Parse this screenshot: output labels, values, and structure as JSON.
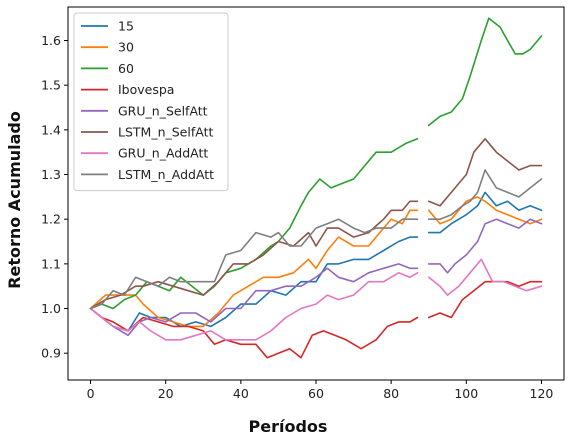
{
  "chart_data": {
    "type": "line",
    "title": "",
    "xlabel": "Períodos",
    "ylabel": "Retorno Acumulado",
    "xlim": [
      -6,
      126
    ],
    "ylim": [
      0.84,
      1.675
    ],
    "xticks": [
      0,
      20,
      40,
      60,
      80,
      100,
      120
    ],
    "yticks": [
      0.9,
      1.0,
      1.1,
      1.2,
      1.3,
      1.4,
      1.5,
      1.6
    ],
    "xtick_labels": [
      "0",
      "20",
      "40",
      "60",
      "80",
      "100",
      "120"
    ],
    "ytick_labels": [
      "0.9",
      "1.0",
      "1.1",
      "1.2",
      "1.3",
      "1.4",
      "1.5",
      "1.6"
    ],
    "grid": false,
    "legend_position": "top-left",
    "series": [
      {
        "name": "15",
        "color": "#1f77b4",
        "gaps": [
          [
            87,
            90
          ]
        ],
        "points": [
          [
            0,
            1.0
          ],
          [
            3,
            0.98
          ],
          [
            6,
            0.96
          ],
          [
            10,
            0.95
          ],
          [
            13,
            0.99
          ],
          [
            16,
            0.98
          ],
          [
            20,
            0.98
          ],
          [
            24,
            0.96
          ],
          [
            28,
            0.97
          ],
          [
            32,
            0.96
          ],
          [
            36,
            0.98
          ],
          [
            40,
            1.01
          ],
          [
            44,
            1.01
          ],
          [
            48,
            1.04
          ],
          [
            52,
            1.03
          ],
          [
            56,
            1.06
          ],
          [
            60,
            1.06
          ],
          [
            63,
            1.1
          ],
          [
            66,
            1.1
          ],
          [
            70,
            1.11
          ],
          [
            74,
            1.11
          ],
          [
            78,
            1.13
          ],
          [
            82,
            1.15
          ],
          [
            85,
            1.16
          ],
          [
            87,
            1.16
          ],
          [
            90,
            1.17
          ],
          [
            93,
            1.17
          ],
          [
            96,
            1.19
          ],
          [
            100,
            1.21
          ],
          [
            103,
            1.23
          ],
          [
            105,
            1.26
          ],
          [
            108,
            1.23
          ],
          [
            111,
            1.24
          ],
          [
            114,
            1.22
          ],
          [
            117,
            1.23
          ],
          [
            120,
            1.22
          ]
        ]
      },
      {
        "name": "30",
        "color": "#ff7f0e",
        "gaps": [
          [
            87,
            90
          ]
        ],
        "points": [
          [
            0,
            1.0
          ],
          [
            4,
            1.03
          ],
          [
            8,
            1.03
          ],
          [
            12,
            1.03
          ],
          [
            14,
            1.01
          ],
          [
            18,
            0.98
          ],
          [
            22,
            0.97
          ],
          [
            26,
            0.96
          ],
          [
            30,
            0.96
          ],
          [
            34,
            0.99
          ],
          [
            38,
            1.03
          ],
          [
            42,
            1.05
          ],
          [
            46,
            1.07
          ],
          [
            50,
            1.07
          ],
          [
            54,
            1.08
          ],
          [
            58,
            1.11
          ],
          [
            60,
            1.09
          ],
          [
            63,
            1.13
          ],
          [
            66,
            1.16
          ],
          [
            70,
            1.14
          ],
          [
            74,
            1.14
          ],
          [
            78,
            1.18
          ],
          [
            80,
            1.2
          ],
          [
            83,
            1.19
          ],
          [
            85,
            1.22
          ],
          [
            87,
            1.22
          ],
          [
            90,
            1.22
          ],
          [
            93,
            1.19
          ],
          [
            96,
            1.2
          ],
          [
            100,
            1.24
          ],
          [
            103,
            1.25
          ],
          [
            105,
            1.24
          ],
          [
            108,
            1.22
          ],
          [
            111,
            1.21
          ],
          [
            114,
            1.2
          ],
          [
            117,
            1.19
          ],
          [
            120,
            1.2
          ]
        ]
      },
      {
        "name": "60",
        "color": "#2ca02c",
        "gaps": [
          [
            87,
            90
          ]
        ],
        "points": [
          [
            0,
            1.0
          ],
          [
            3,
            1.01
          ],
          [
            6,
            1.0
          ],
          [
            9,
            1.02
          ],
          [
            12,
            1.03
          ],
          [
            15,
            1.06
          ],
          [
            18,
            1.05
          ],
          [
            21,
            1.04
          ],
          [
            24,
            1.07
          ],
          [
            27,
            1.05
          ],
          [
            30,
            1.03
          ],
          [
            33,
            1.05
          ],
          [
            36,
            1.08
          ],
          [
            40,
            1.09
          ],
          [
            44,
            1.11
          ],
          [
            48,
            1.14
          ],
          [
            50,
            1.15
          ],
          [
            53,
            1.18
          ],
          [
            56,
            1.23
          ],
          [
            58,
            1.26
          ],
          [
            61,
            1.29
          ],
          [
            64,
            1.27
          ],
          [
            67,
            1.28
          ],
          [
            70,
            1.29
          ],
          [
            73,
            1.32
          ],
          [
            76,
            1.35
          ],
          [
            80,
            1.35
          ],
          [
            84,
            1.37
          ],
          [
            87,
            1.38
          ],
          [
            90,
            1.41
          ],
          [
            93,
            1.43
          ],
          [
            96,
            1.44
          ],
          [
            99,
            1.47
          ],
          [
            101,
            1.52
          ],
          [
            104,
            1.6
          ],
          [
            106,
            1.65
          ],
          [
            109,
            1.63
          ],
          [
            111,
            1.6
          ],
          [
            113,
            1.57
          ],
          [
            115,
            1.57
          ],
          [
            117,
            1.58
          ],
          [
            120,
            1.61
          ]
        ]
      },
      {
        "name": "Ibovespa",
        "color": "#d62728",
        "gaps": [
          [
            87,
            90
          ]
        ],
        "points": [
          [
            0,
            1.0
          ],
          [
            3,
            0.98
          ],
          [
            6,
            0.97
          ],
          [
            10,
            0.95
          ],
          [
            14,
            0.98
          ],
          [
            18,
            0.97
          ],
          [
            22,
            0.96
          ],
          [
            26,
            0.96
          ],
          [
            30,
            0.95
          ],
          [
            33,
            0.92
          ],
          [
            36,
            0.93
          ],
          [
            40,
            0.92
          ],
          [
            44,
            0.92
          ],
          [
            47,
            0.89
          ],
          [
            50,
            0.9
          ],
          [
            53,
            0.91
          ],
          [
            56,
            0.89
          ],
          [
            59,
            0.94
          ],
          [
            62,
            0.95
          ],
          [
            65,
            0.94
          ],
          [
            68,
            0.93
          ],
          [
            72,
            0.91
          ],
          [
            76,
            0.93
          ],
          [
            79,
            0.96
          ],
          [
            82,
            0.97
          ],
          [
            85,
            0.97
          ],
          [
            87,
            0.98
          ],
          [
            90,
            0.98
          ],
          [
            93,
            0.99
          ],
          [
            96,
            0.98
          ],
          [
            99,
            1.02
          ],
          [
            102,
            1.04
          ],
          [
            105,
            1.06
          ],
          [
            108,
            1.06
          ],
          [
            111,
            1.06
          ],
          [
            114,
            1.05
          ],
          [
            117,
            1.06
          ],
          [
            120,
            1.06
          ]
        ]
      },
      {
        "name": "GRU_n_SelfAtt",
        "color": "#9467bd",
        "gaps": [
          [
            87,
            90
          ]
        ],
        "points": [
          [
            0,
            1.0
          ],
          [
            3,
            0.98
          ],
          [
            6,
            0.96
          ],
          [
            10,
            0.94
          ],
          [
            13,
            0.97
          ],
          [
            16,
            0.98
          ],
          [
            20,
            0.97
          ],
          [
            24,
            0.99
          ],
          [
            28,
            0.99
          ],
          [
            32,
            0.97
          ],
          [
            36,
            1.0
          ],
          [
            40,
            1.0
          ],
          [
            44,
            1.04
          ],
          [
            48,
            1.04
          ],
          [
            52,
            1.05
          ],
          [
            56,
            1.05
          ],
          [
            60,
            1.07
          ],
          [
            63,
            1.09
          ],
          [
            66,
            1.07
          ],
          [
            70,
            1.06
          ],
          [
            74,
            1.08
          ],
          [
            78,
            1.09
          ],
          [
            82,
            1.1
          ],
          [
            85,
            1.09
          ],
          [
            87,
            1.09
          ],
          [
            90,
            1.1
          ],
          [
            93,
            1.1
          ],
          [
            95,
            1.08
          ],
          [
            97,
            1.1
          ],
          [
            100,
            1.12
          ],
          [
            103,
            1.15
          ],
          [
            105,
            1.19
          ],
          [
            108,
            1.2
          ],
          [
            111,
            1.19
          ],
          [
            114,
            1.18
          ],
          [
            117,
            1.2
          ],
          [
            120,
            1.19
          ]
        ]
      },
      {
        "name": "LSTM_n_SelfAtt",
        "color": "#8c564b",
        "gaps": [
          [
            87,
            90
          ]
        ],
        "points": [
          [
            0,
            1.0
          ],
          [
            4,
            1.02
          ],
          [
            8,
            1.03
          ],
          [
            12,
            1.05
          ],
          [
            14,
            1.05
          ],
          [
            18,
            1.06
          ],
          [
            22,
            1.05
          ],
          [
            26,
            1.04
          ],
          [
            30,
            1.03
          ],
          [
            34,
            1.06
          ],
          [
            38,
            1.1
          ],
          [
            42,
            1.1
          ],
          [
            46,
            1.12
          ],
          [
            50,
            1.15
          ],
          [
            54,
            1.14
          ],
          [
            58,
            1.17
          ],
          [
            60,
            1.14
          ],
          [
            63,
            1.18
          ],
          [
            66,
            1.18
          ],
          [
            70,
            1.16
          ],
          [
            74,
            1.17
          ],
          [
            78,
            1.2
          ],
          [
            80,
            1.22
          ],
          [
            83,
            1.22
          ],
          [
            85,
            1.24
          ],
          [
            87,
            1.24
          ],
          [
            90,
            1.24
          ],
          [
            93,
            1.23
          ],
          [
            96,
            1.26
          ],
          [
            100,
            1.3
          ],
          [
            102,
            1.35
          ],
          [
            105,
            1.38
          ],
          [
            108,
            1.35
          ],
          [
            111,
            1.33
          ],
          [
            114,
            1.31
          ],
          [
            117,
            1.32
          ],
          [
            120,
            1.32
          ]
        ]
      },
      {
        "name": "GRU_n_AddAtt",
        "color": "#e377c2",
        "gaps": [
          [
            87,
            90
          ]
        ],
        "points": [
          [
            0,
            1.0
          ],
          [
            3,
            0.98
          ],
          [
            6,
            0.96
          ],
          [
            10,
            0.95
          ],
          [
            13,
            0.97
          ],
          [
            16,
            0.95
          ],
          [
            20,
            0.93
          ],
          [
            24,
            0.93
          ],
          [
            28,
            0.94
          ],
          [
            32,
            0.95
          ],
          [
            36,
            0.93
          ],
          [
            40,
            0.93
          ],
          [
            44,
            0.93
          ],
          [
            48,
            0.95
          ],
          [
            52,
            0.98
          ],
          [
            56,
            1.0
          ],
          [
            60,
            1.01
          ],
          [
            63,
            1.03
          ],
          [
            66,
            1.02
          ],
          [
            70,
            1.03
          ],
          [
            74,
            1.06
          ],
          [
            78,
            1.06
          ],
          [
            82,
            1.08
          ],
          [
            85,
            1.07
          ],
          [
            87,
            1.08
          ],
          [
            90,
            1.07
          ],
          [
            93,
            1.05
          ],
          [
            95,
            1.03
          ],
          [
            98,
            1.05
          ],
          [
            101,
            1.08
          ],
          [
            104,
            1.11
          ],
          [
            107,
            1.06
          ],
          [
            110,
            1.06
          ],
          [
            113,
            1.05
          ],
          [
            116,
            1.04
          ],
          [
            120,
            1.05
          ]
        ]
      },
      {
        "name": "LSTM_n_AddAtt",
        "color": "#7f7f7f",
        "gaps": [
          [
            87,
            90
          ]
        ],
        "points": [
          [
            0,
            1.0
          ],
          [
            3,
            1.01
          ],
          [
            6,
            1.04
          ],
          [
            9,
            1.03
          ],
          [
            12,
            1.07
          ],
          [
            15,
            1.06
          ],
          [
            18,
            1.05
          ],
          [
            21,
            1.07
          ],
          [
            24,
            1.06
          ],
          [
            27,
            1.06
          ],
          [
            30,
            1.06
          ],
          [
            33,
            1.06
          ],
          [
            36,
            1.12
          ],
          [
            40,
            1.13
          ],
          [
            44,
            1.17
          ],
          [
            48,
            1.16
          ],
          [
            50,
            1.17
          ],
          [
            53,
            1.14
          ],
          [
            56,
            1.14
          ],
          [
            60,
            1.18
          ],
          [
            63,
            1.19
          ],
          [
            66,
            1.2
          ],
          [
            70,
            1.18
          ],
          [
            73,
            1.17
          ],
          [
            76,
            1.18
          ],
          [
            80,
            1.18
          ],
          [
            83,
            1.2
          ],
          [
            85,
            1.2
          ],
          [
            87,
            1.2
          ],
          [
            90,
            1.2
          ],
          [
            93,
            1.2
          ],
          [
            96,
            1.21
          ],
          [
            99,
            1.23
          ],
          [
            101,
            1.24
          ],
          [
            103,
            1.26
          ],
          [
            105,
            1.31
          ],
          [
            108,
            1.27
          ],
          [
            111,
            1.26
          ],
          [
            114,
            1.25
          ],
          [
            117,
            1.27
          ],
          [
            120,
            1.29
          ]
        ]
      }
    ]
  }
}
